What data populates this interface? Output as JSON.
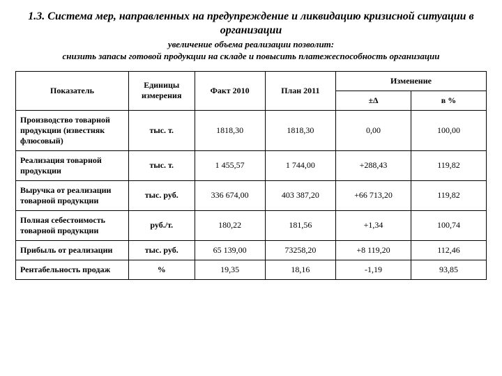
{
  "title": "1.3. Система мер, направленных на предупреждение и ликвидацию кризисной ситуации в организации",
  "subtitle_line1": "увеличение объема реализации позволит:",
  "subtitle_line2": "снизить запасы готовой продукции на складе и повысить платежеспособность организации",
  "headers": {
    "indicator": "Показатель",
    "unit": "Единицы измерения",
    "fact": "Факт 2010",
    "plan": "План 2011",
    "change": "Изменение",
    "delta": "±Δ",
    "pct": "в %"
  },
  "rows": [
    {
      "label": "Производство товарной продукции (известняк флюсовый)",
      "unit": "тыс. т.",
      "fact": "1818,30",
      "plan": "1818,30",
      "delta": "0,00",
      "pct": "100,00"
    },
    {
      "label": "Реализация товарной продукции",
      "unit": "тыс. т.",
      "fact": "1 455,57",
      "plan": "1 744,00",
      "delta": "+288,43",
      "pct": "119,82"
    },
    {
      "label": "Выручка от реализации товарной продукции",
      "unit": "тыс. руб.",
      "fact": "336 674,00",
      "plan": "403 387,20",
      "delta": "+66 713,20",
      "pct": "119,82"
    },
    {
      "label": "Полная себестоимость товарной продукции",
      "unit": "руб./т.",
      "fact": "180,22",
      "plan": "181,56",
      "delta": "+1,34",
      "pct": "100,74"
    },
    {
      "label": "Прибыль от реализации",
      "unit": "тыс. руб.",
      "fact": "65 139,00",
      "plan": "73258,20",
      "delta": "+8 119,20",
      "pct": "112,46"
    },
    {
      "label": "Рентабельность продаж",
      "unit": "%",
      "fact": "19,35",
      "plan": "18,16",
      "delta": "-1,19",
      "pct": "93,85"
    }
  ],
  "style": {
    "background_color": "#ffffff",
    "text_color": "#000000",
    "border_color": "#000000",
    "title_fontsize": 16,
    "subtitle_fontsize": 13,
    "cell_fontsize": 12,
    "font_family": "Times New Roman"
  }
}
